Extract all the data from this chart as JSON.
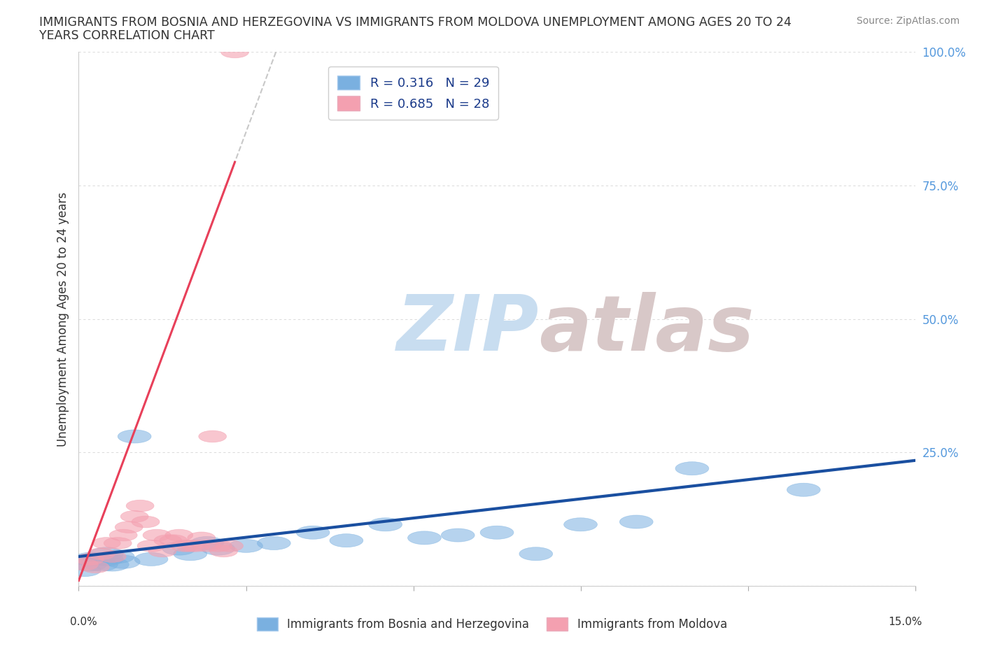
{
  "title_line1": "IMMIGRANTS FROM BOSNIA AND HERZEGOVINA VS IMMIGRANTS FROM MOLDOVA UNEMPLOYMENT AMONG AGES 20 TO 24",
  "title_line2": "YEARS CORRELATION CHART",
  "source": "Source: ZipAtlas.com",
  "ylabel": "Unemployment Among Ages 20 to 24 years",
  "xlim": [
    0.0,
    0.15
  ],
  "ylim": [
    0.0,
    1.0
  ],
  "yticks": [
    0.0,
    0.25,
    0.5,
    0.75,
    1.0
  ],
  "ytick_labels": [
    "",
    "25.0%",
    "50.0%",
    "75.0%",
    "100.0%"
  ],
  "legend_label1": "R = 0.316   N = 29",
  "legend_label2": "R = 0.685   N = 28",
  "color_blue": "#7ab0e0",
  "color_pink": "#f4a0b0",
  "color_blue_line": "#1a4fa0",
  "color_pink_line": "#e8405a",
  "color_pink_dashed": "#ccbbcc",
  "watermark_zip": "#c8ddf0",
  "watermark_atlas": "#d8c8c8",
  "legend_label_blue": "Immigrants from Bosnia and Herzegovina",
  "legend_label_pink": "Immigrants from Moldova",
  "background_color": "#FFFFFF",
  "grid_color": "#DDDDDD",
  "blue_x": [
    0.001,
    0.002,
    0.002,
    0.003,
    0.004,
    0.005,
    0.005,
    0.006,
    0.007,
    0.008,
    0.01,
    0.013,
    0.018,
    0.02,
    0.023,
    0.025,
    0.03,
    0.035,
    0.042,
    0.048,
    0.055,
    0.062,
    0.068,
    0.075,
    0.082,
    0.09,
    0.1,
    0.11,
    0.13
  ],
  "blue_y": [
    0.03,
    0.04,
    0.05,
    0.05,
    0.04,
    0.06,
    0.05,
    0.04,
    0.055,
    0.045,
    0.28,
    0.05,
    0.07,
    0.06,
    0.08,
    0.07,
    0.075,
    0.08,
    0.1,
    0.085,
    0.115,
    0.09,
    0.095,
    0.1,
    0.06,
    0.115,
    0.12,
    0.22,
    0.18
  ],
  "pink_x": [
    0.001,
    0.002,
    0.003,
    0.004,
    0.005,
    0.006,
    0.007,
    0.008,
    0.009,
    0.01,
    0.011,
    0.012,
    0.013,
    0.014,
    0.015,
    0.016,
    0.017,
    0.018,
    0.019,
    0.02,
    0.021,
    0.022,
    0.023,
    0.024,
    0.025,
    0.026,
    0.027,
    0.028
  ],
  "pink_y": [
    0.04,
    0.05,
    0.035,
    0.06,
    0.08,
    0.055,
    0.08,
    0.095,
    0.11,
    0.13,
    0.15,
    0.12,
    0.075,
    0.095,
    0.065,
    0.085,
    0.085,
    0.095,
    0.075,
    0.075,
    0.075,
    0.09,
    0.075,
    0.28,
    0.075,
    0.065,
    0.075,
    1.0
  ],
  "pink_line_x_start": 0.0,
  "pink_line_x_end": 0.028,
  "pink_line_slope": 28.0,
  "pink_line_intercept": 0.01,
  "blue_line_x_start": 0.0,
  "blue_line_x_end": 0.15,
  "blue_line_slope": 1.2,
  "blue_line_intercept": 0.055
}
